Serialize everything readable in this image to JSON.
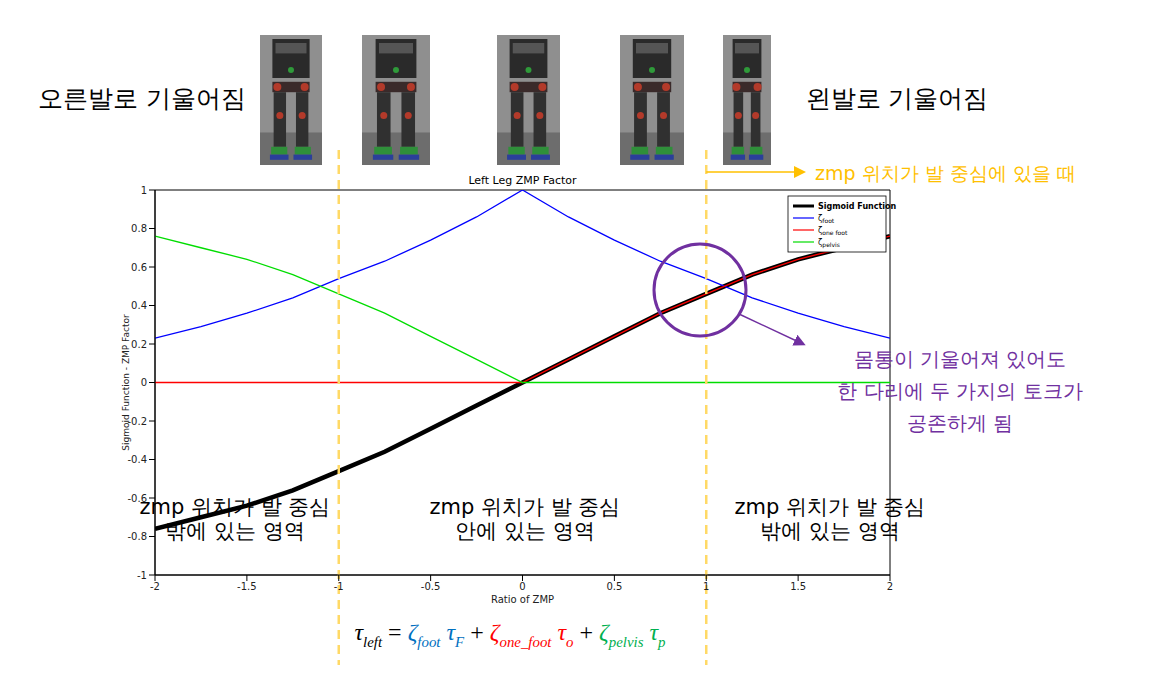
{
  "chart_data": {
    "type": "line",
    "title": "Left Leg ZMP Factor",
    "x_label": "Ratio of ZMP",
    "y_label": "Sigmoid Function - ZMP Factor",
    "x": [
      -2,
      -1.75,
      -1.5,
      -1.25,
      -1,
      -0.75,
      -0.5,
      -0.25,
      0,
      0.25,
      0.5,
      0.75,
      1,
      1.25,
      1.5,
      1.75,
      2
    ],
    "series": [
      {
        "name": "Sigmoid Function",
        "color": "#000000",
        "line_style": "thick",
        "values": [
          -0.76,
          -0.7,
          -0.64,
          -0.56,
          -0.46,
          -0.36,
          -0.24,
          -0.12,
          0,
          0.12,
          0.24,
          0.36,
          0.46,
          0.56,
          0.64,
          0.7,
          0.76
        ]
      },
      {
        "name": "ζfoot",
        "color": "#0000ff",
        "line_style": "solid",
        "values": [
          0.23,
          0.29,
          0.36,
          0.44,
          0.54,
          0.63,
          0.74,
          0.86,
          1,
          0.86,
          0.74,
          0.63,
          0.54,
          0.44,
          0.36,
          0.29,
          0.23
        ]
      },
      {
        "name": "ζone foot",
        "color": "#ff0000",
        "line_style": "solid",
        "values": [
          0,
          0,
          0,
          0,
          0,
          0,
          0,
          0,
          0,
          0.12,
          0.24,
          0.36,
          0.46,
          0.56,
          0.64,
          0.7,
          0.76
        ]
      },
      {
        "name": "ζpelvis",
        "color": "#00dd00",
        "line_style": "solid",
        "values": [
          0.76,
          0.7,
          0.64,
          0.56,
          0.46,
          0.36,
          0.24,
          0.12,
          0,
          0,
          0,
          0,
          0,
          0,
          0,
          0,
          0
        ]
      }
    ],
    "xlim": [
      -2,
      2
    ],
    "xticks": [
      -2,
      -1.5,
      -1,
      -0.5,
      0,
      0.5,
      1,
      1.5,
      2
    ],
    "ylim": [
      -1,
      1
    ],
    "yticks": [
      -1,
      -0.8,
      -0.6,
      -0.4,
      -0.2,
      0,
      0.2,
      0.4,
      0.6,
      0.8,
      1
    ],
    "grid": false,
    "legend": "upper right",
    "reference_lines": [
      -1,
      1
    ]
  },
  "annotations": {
    "left_tilt": "오른발로 기울어짐",
    "right_tilt": "왼발로 기울어짐",
    "zmp_center": "zmp 위치가 발 중심에 있을 때",
    "coexist": [
      "몸통이 기울어져 있어도",
      "한 다리에 두 가지의 토크가",
      "공존하게 됨"
    ],
    "regions": [
      [
        "zmp 위치가 발 중심",
        "밖에 있는 영역"
      ],
      [
        "zmp 위치가 발 중심",
        "안에 있는 영역"
      ],
      [
        "zmp 위치가 발 중심",
        "밖에 있는 영역"
      ]
    ]
  },
  "equation": {
    "lhs": [
      "τ",
      "left"
    ],
    "equals": "=",
    "plus": "+",
    "terms": [
      {
        "factor": [
          "ζ",
          "foot"
        ],
        "torque": [
          "τ",
          "F"
        ],
        "color": "#0070c0"
      },
      {
        "factor": [
          "ζ",
          "one_foot"
        ],
        "torque": [
          "τ",
          "o"
        ],
        "color": "#ff0000"
      },
      {
        "factor": [
          "ζ",
          "pelvis"
        ],
        "torque": [
          "τ",
          "p"
        ],
        "color": "#00b050"
      }
    ]
  }
}
